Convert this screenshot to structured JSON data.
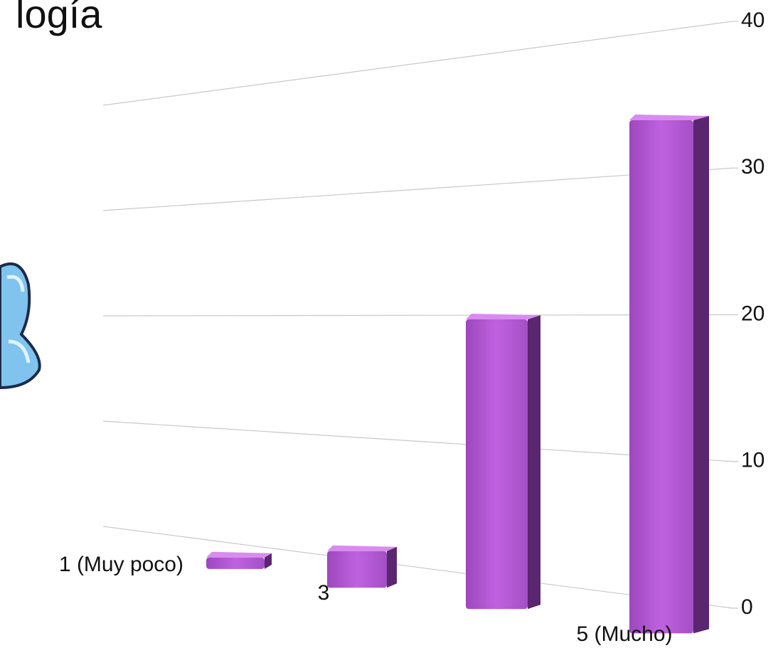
{
  "chart_data": {
    "type": "bar",
    "title": "logía",
    "categories": [
      "1 (Muy poco)",
      "3",
      null,
      "5 (Mucho)"
    ],
    "values": [
      1,
      3,
      22,
      36
    ],
    "color": "#b65fd6",
    "ylim": [
      0,
      40
    ],
    "yticks": [
      0,
      10,
      20,
      30,
      40
    ],
    "grid": true
  }
}
